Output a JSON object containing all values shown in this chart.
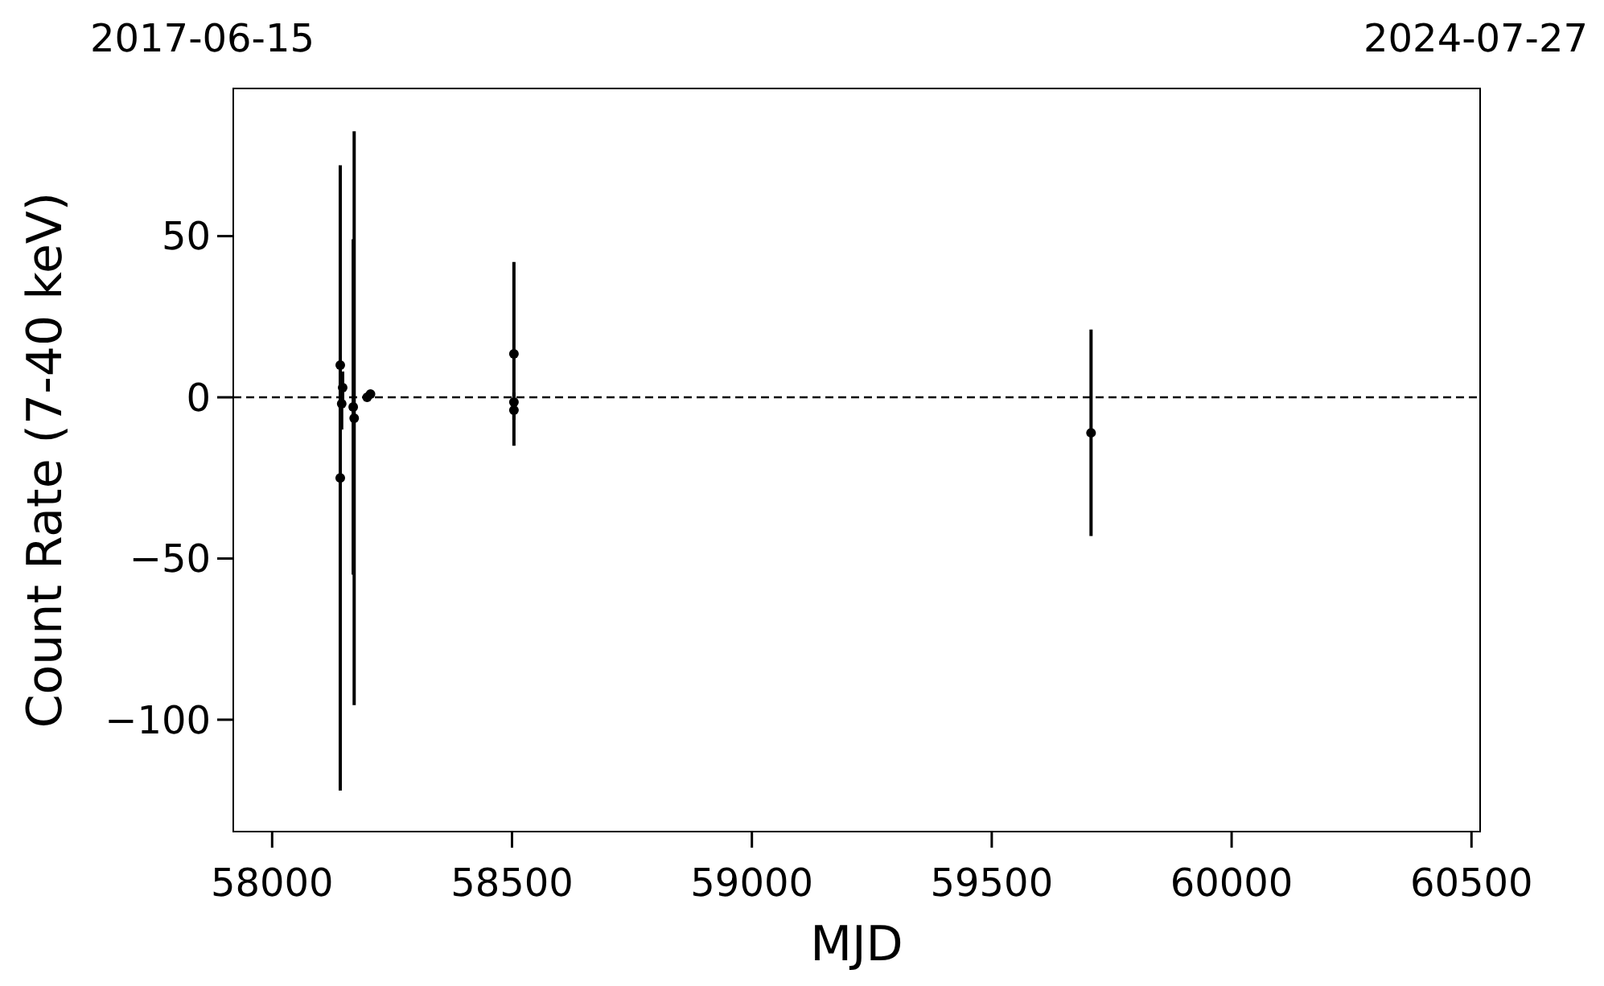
{
  "chart_data": {
    "type": "scatter",
    "xlabel": "MJD",
    "ylabel": "Count Rate (7-40 keV)",
    "annotations": [
      "2017-06-15",
      "2024-07-27"
    ],
    "series": [
      {
        "color": "#000000",
        "x": [
          58142,
          58142,
          58145,
          58147,
          58169,
          58171,
          58198,
          58205,
          58504,
          58504,
          58504,
          59707
        ],
        "values": [
          10,
          -25,
          -2,
          3,
          -3,
          -6.5,
          0,
          1,
          13.5,
          -1.5,
          -4,
          -11
        ],
        "errors": [
          3,
          97,
          8,
          5,
          52,
          89,
          1,
          1,
          28.5,
          3,
          3,
          32
        ]
      }
    ],
    "marker": "circle",
    "xlim": [
      57919,
      60518
    ],
    "xticks": [
      58000,
      58500,
      59000,
      59500,
      60000,
      60500
    ],
    "ylim": [
      -134.7,
      95.8
    ],
    "yticks": [
      {
        "value": -100,
        "label": "−100"
      },
      {
        "value": -50,
        "label": "−50"
      },
      0,
      50
    ],
    "ref_lines": [
      {
        "axis": "y",
        "value": 0,
        "color": "#000000",
        "line_style": "dashed"
      }
    ],
    "grid": false
  }
}
